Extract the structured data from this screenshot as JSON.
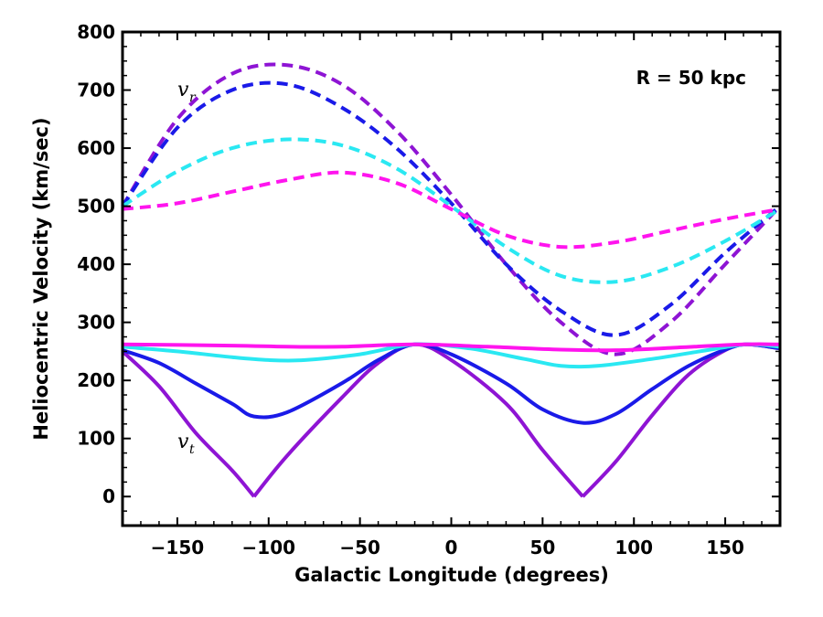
{
  "chart_data": {
    "type": "line",
    "title": "",
    "xlabel": "Galactic Longitude (degrees)",
    "ylabel": "Heliocentric Velocity (km/sec)",
    "xlim": [
      -180,
      180
    ],
    "ylim": [
      -50,
      800
    ],
    "xticks": [
      -150,
      -100,
      -50,
      0,
      50,
      100,
      150
    ],
    "yticks": [
      0,
      100,
      200,
      300,
      400,
      500,
      600,
      700,
      800
    ],
    "grid": false,
    "legend": "none",
    "annotation": "R = 50 kpc",
    "curve_labels": {
      "radial": {
        "main": "v",
        "sub": "r"
      },
      "tangential": {
        "main": "v",
        "sub": "t"
      }
    },
    "colors": {
      "purple": "#8e14d4",
      "blue": "#1a1ae8",
      "cyan": "#2ae8f2",
      "magenta": "#ff14ee"
    },
    "series": [
      {
        "component": "radial",
        "color": "purple",
        "style": "dashed",
        "points": [
          [
            -180,
            500
          ],
          [
            -150,
            650
          ],
          [
            -120,
            728
          ],
          [
            -90,
            743
          ],
          [
            -60,
            710
          ],
          [
            -30,
            630
          ],
          [
            0,
            520
          ],
          [
            30,
            400
          ],
          [
            60,
            300
          ],
          [
            90,
            245
          ],
          [
            120,
            300
          ],
          [
            150,
            400
          ],
          [
            180,
            500
          ]
        ]
      },
      {
        "component": "radial",
        "color": "blue",
        "style": "dashed",
        "points": [
          [
            -180,
            500
          ],
          [
            -150,
            635
          ],
          [
            -120,
            700
          ],
          [
            -90,
            710
          ],
          [
            -60,
            670
          ],
          [
            -30,
            600
          ],
          [
            0,
            505
          ],
          [
            30,
            400
          ],
          [
            60,
            320
          ],
          [
            90,
            278
          ],
          [
            120,
            330
          ],
          [
            150,
            420
          ],
          [
            180,
            500
          ]
        ]
      },
      {
        "component": "radial",
        "color": "cyan",
        "style": "dashed",
        "points": [
          [
            -180,
            500
          ],
          [
            -150,
            560
          ],
          [
            -120,
            600
          ],
          [
            -90,
            615
          ],
          [
            -60,
            605
          ],
          [
            -30,
            565
          ],
          [
            0,
            500
          ],
          [
            30,
            430
          ],
          [
            60,
            380
          ],
          [
            90,
            370
          ],
          [
            120,
            395
          ],
          [
            150,
            440
          ],
          [
            180,
            495
          ]
        ]
      },
      {
        "component": "radial",
        "color": "magenta",
        "style": "dashed",
        "points": [
          [
            -180,
            495
          ],
          [
            -150,
            505
          ],
          [
            -120,
            525
          ],
          [
            -90,
            545
          ],
          [
            -60,
            558
          ],
          [
            -30,
            540
          ],
          [
            0,
            495
          ],
          [
            30,
            450
          ],
          [
            60,
            430
          ],
          [
            90,
            438
          ],
          [
            120,
            458
          ],
          [
            150,
            478
          ],
          [
            180,
            495
          ]
        ]
      },
      {
        "component": "tangential",
        "color": "purple",
        "style": "solid",
        "points": [
          [
            -180,
            250
          ],
          [
            -160,
            190
          ],
          [
            -140,
            110
          ],
          [
            -120,
            45
          ],
          [
            -108,
            0
          ],
          [
            -90,
            70
          ],
          [
            -60,
            170
          ],
          [
            -40,
            230
          ],
          [
            -20,
            262
          ],
          [
            0,
            235
          ],
          [
            30,
            160
          ],
          [
            50,
            80
          ],
          [
            72,
            0
          ],
          [
            90,
            60
          ],
          [
            110,
            140
          ],
          [
            130,
            210
          ],
          [
            150,
            252
          ],
          [
            162,
            262
          ],
          [
            180,
            255
          ]
        ]
      },
      {
        "component": "tangential",
        "color": "blue",
        "style": "solid",
        "points": [
          [
            -180,
            252
          ],
          [
            -160,
            230
          ],
          [
            -140,
            195
          ],
          [
            -120,
            160
          ],
          [
            -108,
            138
          ],
          [
            -90,
            145
          ],
          [
            -60,
            195
          ],
          [
            -40,
            235
          ],
          [
            -20,
            262
          ],
          [
            0,
            245
          ],
          [
            30,
            195
          ],
          [
            50,
            150
          ],
          [
            72,
            127
          ],
          [
            90,
            142
          ],
          [
            110,
            185
          ],
          [
            130,
            225
          ],
          [
            150,
            253
          ],
          [
            162,
            262
          ],
          [
            180,
            255
          ]
        ]
      },
      {
        "component": "tangential",
        "color": "cyan",
        "style": "solid",
        "points": [
          [
            -180,
            258
          ],
          [
            -150,
            250
          ],
          [
            -120,
            240
          ],
          [
            -100,
            235
          ],
          [
            -80,
            235
          ],
          [
            -50,
            245
          ],
          [
            -20,
            262
          ],
          [
            10,
            255
          ],
          [
            40,
            237
          ],
          [
            60,
            225
          ],
          [
            80,
            225
          ],
          [
            110,
            237
          ],
          [
            140,
            252
          ],
          [
            162,
            262
          ],
          [
            180,
            258
          ]
        ]
      },
      {
        "component": "tangential",
        "color": "magenta",
        "style": "solid",
        "points": [
          [
            -180,
            262
          ],
          [
            -120,
            260
          ],
          [
            -90,
            258
          ],
          [
            -60,
            258
          ],
          [
            -20,
            262
          ],
          [
            20,
            258
          ],
          [
            60,
            253
          ],
          [
            90,
            252
          ],
          [
            120,
            256
          ],
          [
            160,
            262
          ],
          [
            180,
            262
          ]
        ]
      }
    ]
  }
}
